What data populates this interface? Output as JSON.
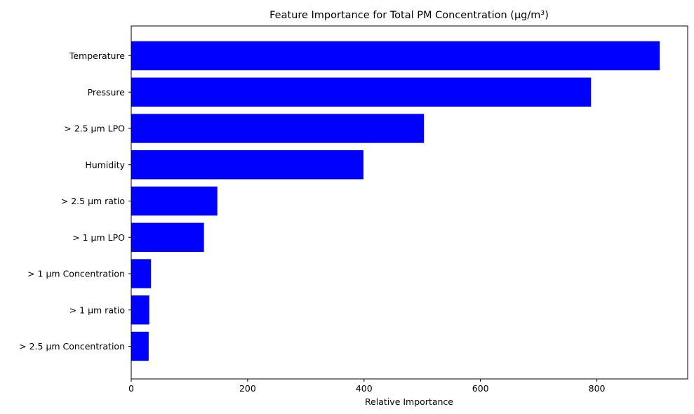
{
  "chart_data": {
    "type": "bar",
    "orientation": "horizontal",
    "title": "Feature Importance for Total PM Concentration (μg/m³)",
    "xlabel": "Relative Importance",
    "ylabel": "",
    "categories": [
      "> 2.5 µm Concentration",
      "> 1 µm ratio",
      "> 1 µm Concentration",
      "> 1 µm LPO",
      "> 2.5 µm ratio",
      "Humidity",
      "> 2.5 µm LPO",
      "Pressure",
      "Temperature"
    ],
    "values": [
      30,
      31,
      34,
      125,
      148,
      399,
      503,
      790,
      908
    ],
    "xlim": [
      0,
      956
    ],
    "xticks": [
      0,
      200,
      400,
      600,
      800
    ],
    "bar_color": "#0000ff",
    "grid": false,
    "legend": "none"
  }
}
